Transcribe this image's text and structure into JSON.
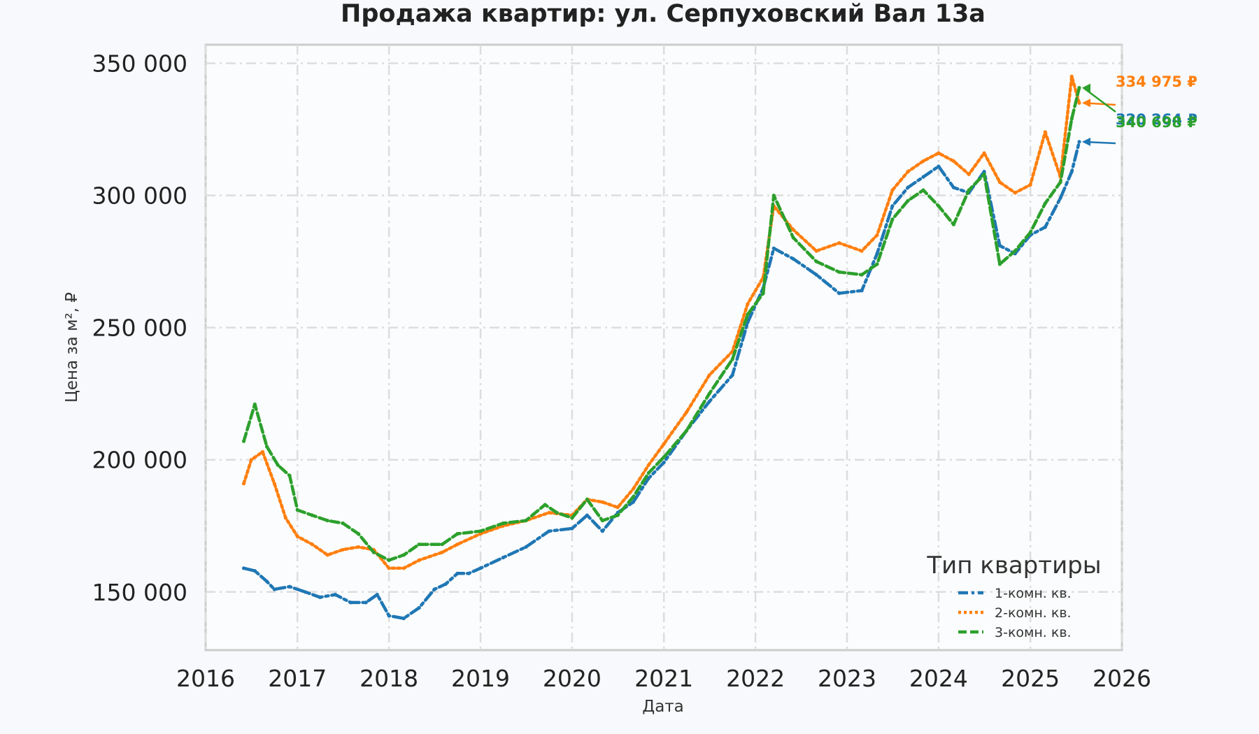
{
  "chart_data": {
    "type": "line",
    "title": "Продажа квартир: ул. Серпуховский Вал 13а",
    "xlabel": "Дата",
    "ylabel": "Цена за м², ₽",
    "xlim": [
      "2016-01-01",
      "2026-01-01"
    ],
    "ylim": [
      128000,
      357000
    ],
    "x_ticks": [
      "2016",
      "2017",
      "2018",
      "2019",
      "2020",
      "2021",
      "2022",
      "2023",
      "2024",
      "2025",
      "2026"
    ],
    "y_ticks": [
      150000,
      200000,
      250000,
      300000,
      350000
    ],
    "y_tick_labels": [
      "150 000",
      "200 000",
      "250 000",
      "300 000",
      "350 000"
    ],
    "grid": true,
    "legend": {
      "title": "Тип квартиры",
      "position": "bottom-right"
    },
    "series": [
      {
        "name": "1-комн. кв.",
        "color": "#1f77b4",
        "style": "dashdot",
        "end_label": "320 264 ₽",
        "points": [
          [
            "2016-06-01",
            159000
          ],
          [
            "2016-07-15",
            158000
          ],
          [
            "2016-09-01",
            154000
          ],
          [
            "2016-10-01",
            151000
          ],
          [
            "2016-12-01",
            152000
          ],
          [
            "2017-02-01",
            150000
          ],
          [
            "2017-04-01",
            148000
          ],
          [
            "2017-06-01",
            149000
          ],
          [
            "2017-08-01",
            146000
          ],
          [
            "2017-10-01",
            146000
          ],
          [
            "2017-11-15",
            149000
          ],
          [
            "2018-01-01",
            141000
          ],
          [
            "2018-03-01",
            140000
          ],
          [
            "2018-05-01",
            144000
          ],
          [
            "2018-07-01",
            151000
          ],
          [
            "2018-08-15",
            153000
          ],
          [
            "2018-10-01",
            157000
          ],
          [
            "2018-11-15",
            157000
          ],
          [
            "2019-01-01",
            159000
          ],
          [
            "2019-04-01",
            163000
          ],
          [
            "2019-07-01",
            167000
          ],
          [
            "2019-10-01",
            173000
          ],
          [
            "2020-01-01",
            174000
          ],
          [
            "2020-03-01",
            179000
          ],
          [
            "2020-05-01",
            173000
          ],
          [
            "2020-07-01",
            180000
          ],
          [
            "2020-09-01",
            184000
          ],
          [
            "2020-11-01",
            193000
          ],
          [
            "2021-01-01",
            199000
          ],
          [
            "2021-04-01",
            211000
          ],
          [
            "2021-07-01",
            222000
          ],
          [
            "2021-10-01",
            232000
          ],
          [
            "2021-12-01",
            252000
          ],
          [
            "2022-02-01",
            265000
          ],
          [
            "2022-03-15",
            280000
          ],
          [
            "2022-06-01",
            276000
          ],
          [
            "2022-09-01",
            270000
          ],
          [
            "2022-12-01",
            263000
          ],
          [
            "2023-03-01",
            264000
          ],
          [
            "2023-05-01",
            278000
          ],
          [
            "2023-07-01",
            296000
          ],
          [
            "2023-09-01",
            303000
          ],
          [
            "2023-11-01",
            307000
          ],
          [
            "2024-01-01",
            311000
          ],
          [
            "2024-03-01",
            303000
          ],
          [
            "2024-05-01",
            301000
          ],
          [
            "2024-07-01",
            309000
          ],
          [
            "2024-09-01",
            281000
          ],
          [
            "2024-11-01",
            278000
          ],
          [
            "2025-01-01",
            285000
          ],
          [
            "2025-03-01",
            288000
          ],
          [
            "2025-05-01",
            299000
          ],
          [
            "2025-06-15",
            309000
          ],
          [
            "2025-07-15",
            320264
          ]
        ]
      },
      {
        "name": "2-комн. кв.",
        "color": "#ff7f0e",
        "style": "dotted",
        "end_label": "334 975 ₽",
        "points": [
          [
            "2016-06-01",
            191000
          ],
          [
            "2016-07-01",
            200000
          ],
          [
            "2016-08-15",
            203000
          ],
          [
            "2016-10-01",
            191000
          ],
          [
            "2016-11-15",
            178000
          ],
          [
            "2017-01-01",
            171000
          ],
          [
            "2017-03-01",
            168000
          ],
          [
            "2017-05-01",
            164000
          ],
          [
            "2017-07-01",
            166000
          ],
          [
            "2017-09-01",
            167000
          ],
          [
            "2017-11-01",
            166000
          ],
          [
            "2018-01-01",
            159000
          ],
          [
            "2018-03-01",
            159000
          ],
          [
            "2018-05-01",
            162000
          ],
          [
            "2018-08-01",
            165000
          ],
          [
            "2018-10-01",
            168000
          ],
          [
            "2019-01-01",
            172000
          ],
          [
            "2019-04-01",
            175000
          ],
          [
            "2019-07-01",
            177000
          ],
          [
            "2019-10-01",
            180000
          ],
          [
            "2020-01-01",
            179000
          ],
          [
            "2020-03-01",
            185000
          ],
          [
            "2020-05-01",
            184000
          ],
          [
            "2020-07-01",
            182000
          ],
          [
            "2020-09-01",
            189000
          ],
          [
            "2020-11-01",
            198000
          ],
          [
            "2021-01-01",
            206000
          ],
          [
            "2021-04-01",
            218000
          ],
          [
            "2021-07-01",
            232000
          ],
          [
            "2021-10-01",
            241000
          ],
          [
            "2021-12-01",
            259000
          ],
          [
            "2022-02-01",
            269000
          ],
          [
            "2022-03-15",
            296000
          ],
          [
            "2022-06-01",
            287000
          ],
          [
            "2022-09-01",
            279000
          ],
          [
            "2022-12-01",
            282000
          ],
          [
            "2023-03-01",
            279000
          ],
          [
            "2023-05-01",
            285000
          ],
          [
            "2023-07-01",
            302000
          ],
          [
            "2023-09-01",
            309000
          ],
          [
            "2023-11-01",
            313000
          ],
          [
            "2024-01-01",
            316000
          ],
          [
            "2024-03-01",
            313000
          ],
          [
            "2024-05-01",
            308000
          ],
          [
            "2024-07-01",
            316000
          ],
          [
            "2024-09-01",
            305000
          ],
          [
            "2024-11-01",
            301000
          ],
          [
            "2025-01-01",
            304000
          ],
          [
            "2025-03-01",
            324000
          ],
          [
            "2025-05-01",
            307000
          ],
          [
            "2025-06-15",
            345000
          ],
          [
            "2025-07-15",
            334975
          ]
        ]
      },
      {
        "name": "3-комн. кв.",
        "color": "#2ca02c",
        "style": "dashed",
        "end_label": "340 698 ₽",
        "points": [
          [
            "2016-06-01",
            207000
          ],
          [
            "2016-07-15",
            221000
          ],
          [
            "2016-09-01",
            205000
          ],
          [
            "2016-10-15",
            198000
          ],
          [
            "2016-12-01",
            194000
          ],
          [
            "2017-01-01",
            181000
          ],
          [
            "2017-03-01",
            179000
          ],
          [
            "2017-05-01",
            177000
          ],
          [
            "2017-07-01",
            176000
          ],
          [
            "2017-09-01",
            172000
          ],
          [
            "2017-11-01",
            165000
          ],
          [
            "2018-01-01",
            162000
          ],
          [
            "2018-03-01",
            164000
          ],
          [
            "2018-05-01",
            168000
          ],
          [
            "2018-08-01",
            168000
          ],
          [
            "2018-10-01",
            172000
          ],
          [
            "2019-01-01",
            173000
          ],
          [
            "2019-04-01",
            176000
          ],
          [
            "2019-07-01",
            177000
          ],
          [
            "2019-09-15",
            183000
          ],
          [
            "2019-11-01",
            180000
          ],
          [
            "2020-01-01",
            178000
          ],
          [
            "2020-03-01",
            185000
          ],
          [
            "2020-05-01",
            177000
          ],
          [
            "2020-07-01",
            179000
          ],
          [
            "2020-09-01",
            186000
          ],
          [
            "2020-11-01",
            195000
          ],
          [
            "2021-01-01",
            201000
          ],
          [
            "2021-04-01",
            211000
          ],
          [
            "2021-07-01",
            225000
          ],
          [
            "2021-10-01",
            238000
          ],
          [
            "2021-12-01",
            255000
          ],
          [
            "2022-02-01",
            263000
          ],
          [
            "2022-03-15",
            300000
          ],
          [
            "2022-06-01",
            284000
          ],
          [
            "2022-09-01",
            275000
          ],
          [
            "2022-12-01",
            271000
          ],
          [
            "2023-03-01",
            270000
          ],
          [
            "2023-05-01",
            274000
          ],
          [
            "2023-07-01",
            291000
          ],
          [
            "2023-09-01",
            298000
          ],
          [
            "2023-11-01",
            302000
          ],
          [
            "2024-01-01",
            296000
          ],
          [
            "2024-03-01",
            289000
          ],
          [
            "2024-05-01",
            302000
          ],
          [
            "2024-07-01",
            308000
          ],
          [
            "2024-09-01",
            274000
          ],
          [
            "2024-11-01",
            279000
          ],
          [
            "2025-01-01",
            286000
          ],
          [
            "2025-03-01",
            297000
          ],
          [
            "2025-05-01",
            305000
          ],
          [
            "2025-06-15",
            329000
          ],
          [
            "2025-07-15",
            340698
          ]
        ]
      }
    ]
  }
}
